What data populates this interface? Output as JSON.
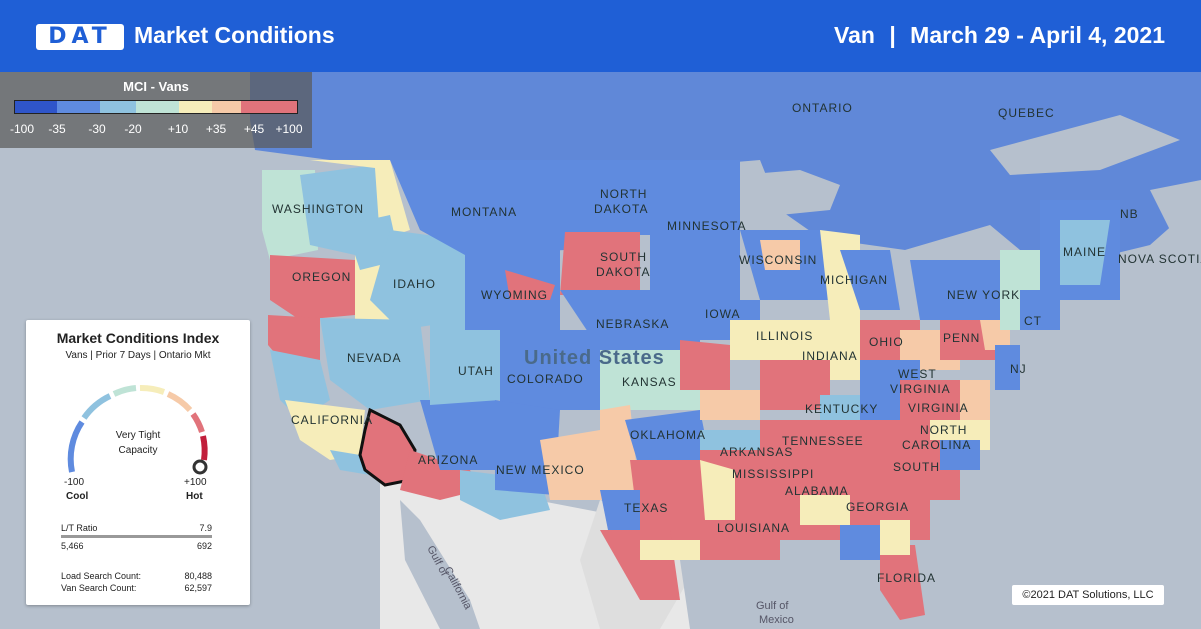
{
  "header": {
    "logo": "DAT",
    "title": "Market Conditions",
    "equipment": "Van",
    "separator": "|",
    "dates": "March 29 - April 4, 2021"
  },
  "legend": {
    "title": "MCI - Vans",
    "labels": [
      "-100",
      "-35",
      "-30",
      "-20",
      "+10",
      "+35",
      "+45",
      "+100"
    ],
    "colors": [
      "#2f55c9",
      "#5f8bdf",
      "#8fc2df",
      "#bfe3d6",
      "#f6edba",
      "#f6caa8",
      "#e1737b",
      "#c11e3b"
    ]
  },
  "mci_card": {
    "title": "Market Conditions Index",
    "subtitle": "Vans | Prior 7 Days | Ontario Mkt",
    "status_line1": "Very Tight",
    "status_line2": "Capacity",
    "min_label": "-100",
    "max_label": "+100",
    "cool_label": "Cool",
    "hot_label": "Hot",
    "gauge_value": 100,
    "ratio_label": "L/T Ratio",
    "ratio_value": "7.9",
    "loads": "5,466",
    "trucks": "692",
    "load_search_label": "Load Search Count:",
    "load_search_value": "80,488",
    "van_search_label": "Van Search Count:",
    "van_search_value": "62,597"
  },
  "map_labels": {
    "ontario": "ONTARIO",
    "quebec": "QUEBEC",
    "washington": "WASHINGTON",
    "montana": "MONTANA",
    "north_dakota_1": "NORTH",
    "north_dakota_2": "DAKOTA",
    "minnesota": "MINNESOTA",
    "south_dakota_1": "SOUTH",
    "south_dakota_2": "DAKOTA",
    "oregon": "OREGON",
    "idaho": "IDAHO",
    "wyoming": "WYOMING",
    "wisconsin": "WISCONSIN",
    "michigan": "MICHIGAN",
    "new_york": "NEW YORK",
    "maine": "MAINE",
    "nb": "NB",
    "nova_scotia": "NOVA SCOTIA",
    "nebraska": "NEBRASKA",
    "iowa": "IOWA",
    "nevada": "NEVADA",
    "utah": "UTAH",
    "colorado": "COLORADO",
    "united_states": "United States",
    "kansas": "KANSAS",
    "illinois": "ILLINOIS",
    "indiana": "INDIANA",
    "ohio": "OHIO",
    "penn": "PENN",
    "nj": "NJ",
    "ct": "CT",
    "west_virginia_1": "WEST",
    "west_virginia_2": "VIRGINIA",
    "virginia": "VIRGINIA",
    "kentucky": "KENTUCKY",
    "california": "CALIFORNIA",
    "arizona": "ARIZONA",
    "new_mexico": "NEW MEXICO",
    "oklahoma": "OKLAHOMA",
    "arkansas": "ARKANSAS",
    "tennessee": "TENNESSEE",
    "north_carolina_1": "NORTH",
    "north_carolina_2": "CAROLINA",
    "south": "SOUTH",
    "mississippi": "MISSISSIPPI",
    "alabama": "ALABAMA",
    "georgia": "GEORGIA",
    "texas": "TEXAS",
    "louisiana": "LOUISIANA",
    "florida": "FLORIDA",
    "gulf_california_1": "Gulf of",
    "gulf_california_2": "California",
    "gulf_mexico_1": "Gulf of",
    "gulf_mexico_2": "Mexico"
  },
  "copyright": "©2021 DAT Solutions, LLC"
}
